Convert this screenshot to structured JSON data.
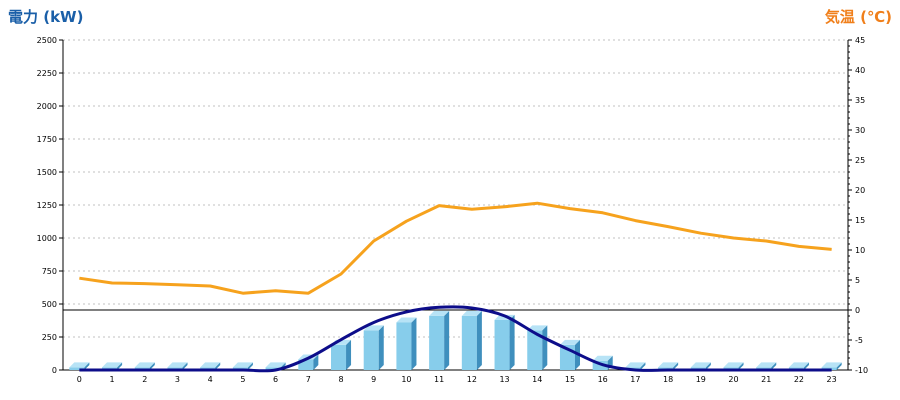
{
  "colors": {
    "left_title": "#1a5fa8",
    "right_title": "#f07f1a",
    "bar_front": "#87cdeb",
    "bar_side": "#3f8fbd",
    "bar_top": "#b7e3f6",
    "power_line": "#0d0d8a",
    "temp_line": "#f6a21d",
    "grid": "#c0c0c0",
    "axis": "#000000"
  },
  "chart_data": {
    "type": "bar+line",
    "title_left": "電力 (kW)",
    "title_right": "気温 (℃)",
    "categories": [
      "0",
      "1",
      "2",
      "3",
      "4",
      "5",
      "6",
      "7",
      "8",
      "9",
      "10",
      "11",
      "12",
      "13",
      "14",
      "15",
      "16",
      "17",
      "18",
      "19",
      "20",
      "21",
      "22",
      "23"
    ],
    "y_left": {
      "ylim": [
        0,
        2500
      ],
      "ticks": [
        "0",
        "250",
        "500",
        "750",
        "1000",
        "1250",
        "1500",
        "1750",
        "2000",
        "2250",
        "2500"
      ]
    },
    "y_right": {
      "ylim": [
        -10,
        45
      ],
      "ticks": [
        "-10",
        "-5",
        "0",
        "5",
        "10",
        "15",
        "20",
        "25",
        "30",
        "35",
        "40",
        "45"
      ]
    },
    "grid": true,
    "reference_line": {
      "axis": "right",
      "value": 0
    },
    "series": [
      {
        "type": "bar3d",
        "axis": "left",
        "values": [
          20,
          20,
          20,
          20,
          20,
          20,
          20,
          80,
          190,
          300,
          360,
          410,
          410,
          380,
          300,
          190,
          70,
          20,
          20,
          20,
          20,
          20,
          20,
          20
        ]
      },
      {
        "type": "line",
        "axis": "left",
        "values": [
          0,
          0,
          0,
          0,
          0,
          0,
          0,
          90,
          230,
          360,
          440,
          475,
          470,
          410,
          270,
          150,
          40,
          0,
          0,
          0,
          0,
          0,
          0,
          0
        ]
      },
      {
        "type": "line",
        "axis": "right",
        "values": [
          5.3,
          4.5,
          4.4,
          4.2,
          4.0,
          2.8,
          3.2,
          2.8,
          6.0,
          11.5,
          14.8,
          17.4,
          16.8,
          17.2,
          17.8,
          16.9,
          16.2,
          14.9,
          13.9,
          12.8,
          12.0,
          11.5,
          10.6,
          10.1
        ]
      }
    ]
  }
}
